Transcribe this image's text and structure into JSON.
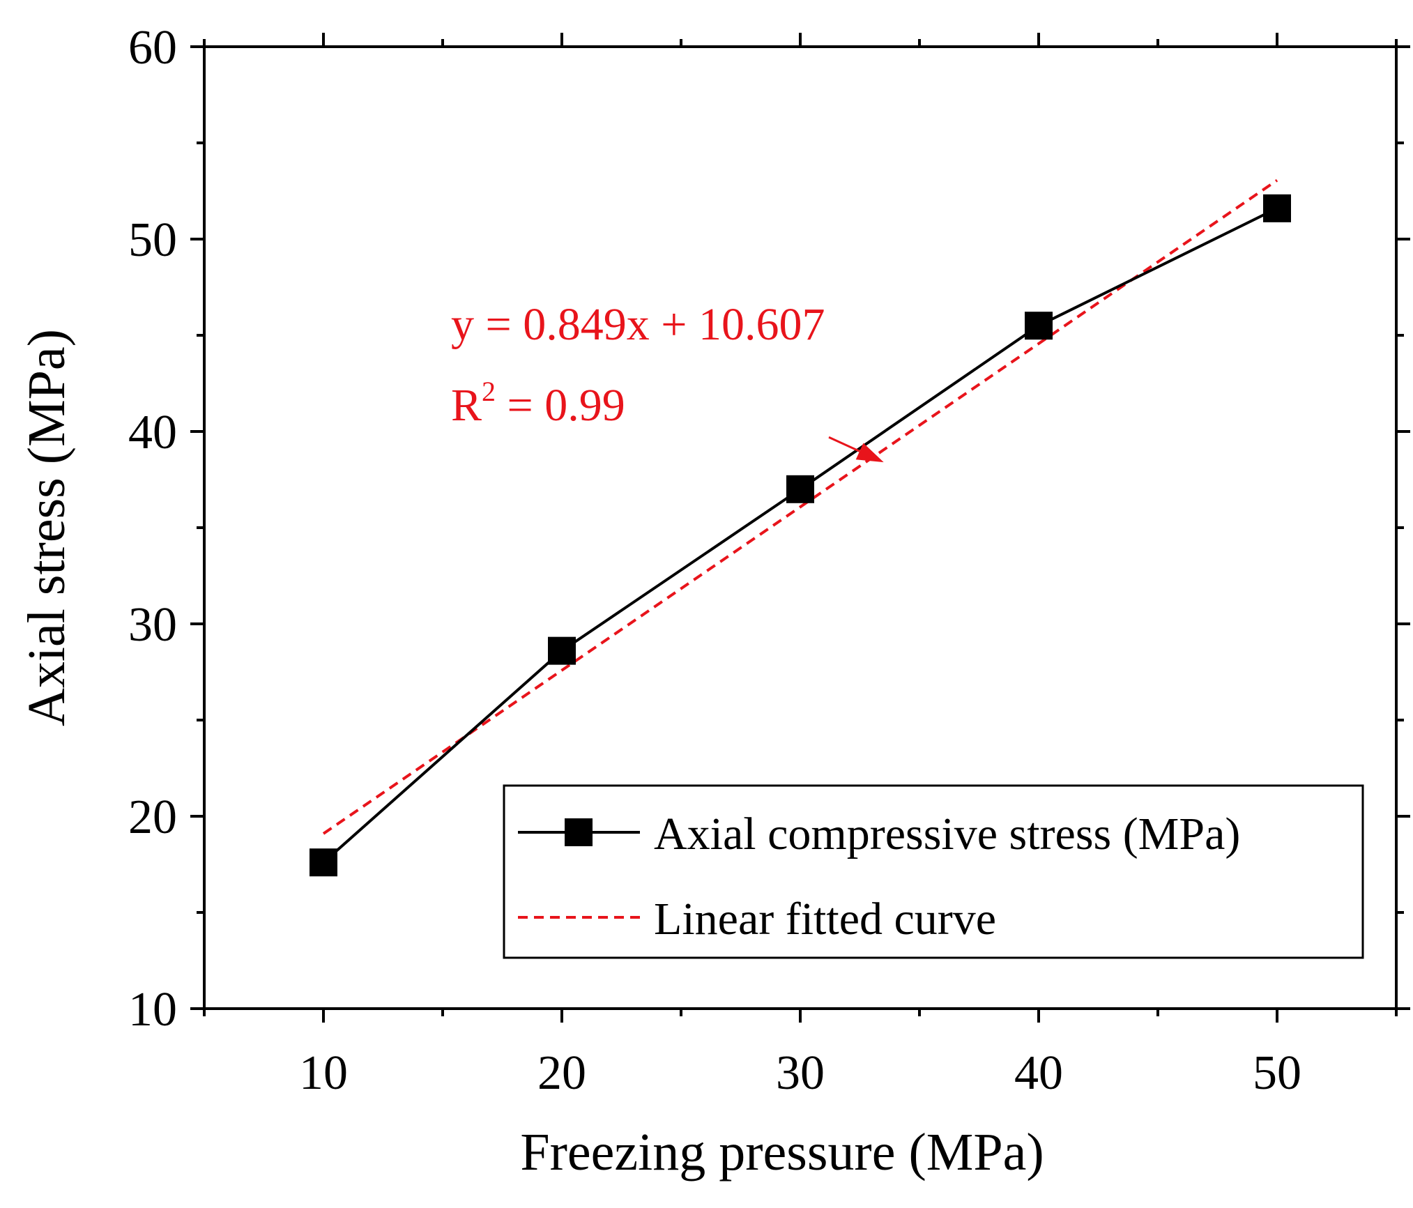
{
  "chart_data": {
    "type": "line",
    "xlabel": "Freezing pressure (MPa)",
    "ylabel": "Axial stress (MPa)",
    "xlim": [
      5,
      55
    ],
    "ylim": [
      10,
      60
    ],
    "x_ticks": [
      10,
      20,
      30,
      40,
      50
    ],
    "x_minor_ticks": [
      5,
      15,
      25,
      35,
      45,
      55
    ],
    "y_ticks": [
      10,
      20,
      30,
      40,
      50,
      60
    ],
    "y_minor_ticks": [
      15,
      25,
      35,
      45,
      55
    ],
    "grid": false,
    "series": [
      {
        "name": "Axial compressive stress (MPa)",
        "style": "solid-square-markers",
        "color": "#000000",
        "x": [
          10,
          20,
          30,
          40,
          50
        ],
        "y": [
          17.6,
          28.6,
          37.0,
          45.5,
          51.6
        ]
      },
      {
        "name": "Linear fitted curve",
        "style": "dashed",
        "color": "#e8141b",
        "slope": 0.849,
        "intercept": 10.607,
        "x": [
          10,
          50
        ],
        "y": [
          19.097,
          53.057
        ]
      }
    ],
    "legend": {
      "position": "bottom-right",
      "entries": [
        "Axial compressive stress (MPa)",
        "Linear fitted curve"
      ]
    },
    "annotation": {
      "equation": "y = 0.849x + 10.607",
      "r2_prefix": "R",
      "r2_sup": "2",
      "r2_value": " = 0.99",
      "arrow_from": [
        31.2,
        39.7
      ],
      "arrow_to": [
        33.5,
        38.4
      ],
      "color": "#e8141b"
    }
  }
}
